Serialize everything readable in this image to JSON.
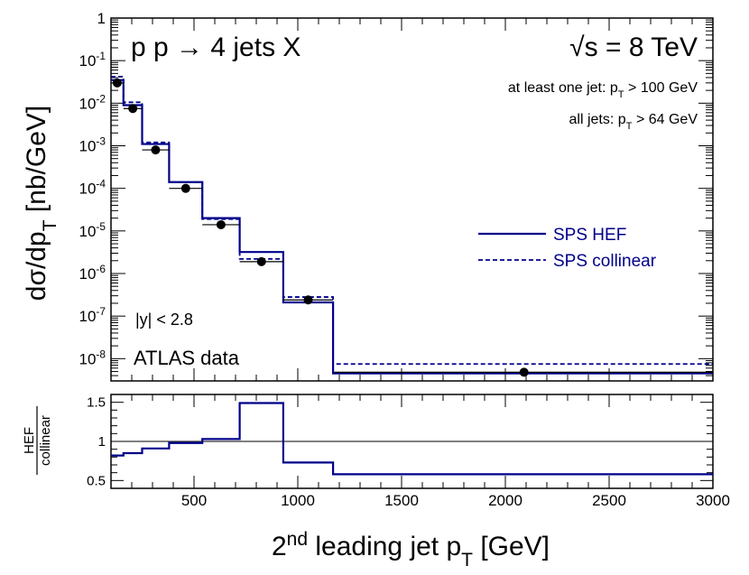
{
  "chart_data": {
    "type": "step-histogram",
    "title": "p p → 4 jets X",
    "energy": "√s = 8 TeV",
    "cuts": [
      "at least one jet: p_T > 100 GeV",
      "all jets: p_T > 64 GeV"
    ],
    "rapidity_cut": "|y| < 2.8",
    "data_label": "ATLAS data",
    "xlabel": "2nd leading jet p_T  [GeV]",
    "xlim": [
      100,
      3000
    ],
    "xticks": [
      500,
      1000,
      1500,
      2000,
      2500,
      3000
    ],
    "top": {
      "ylabel": "dσ/dp_T  [nb/GeV]",
      "yscale": "log",
      "ylim": [
        3e-09,
        1
      ],
      "bin_edges": [
        100,
        160,
        250,
        380,
        540,
        720,
        930,
        1170,
        3000
      ],
      "series": [
        {
          "name": "SPS HEF",
          "style": "solid",
          "color": "#00008b",
          "values": [
            0.035,
            0.009,
            0.0011,
            0.00014,
            2e-05,
            3.2e-06,
            2.1e-07,
            4.5e-09
          ]
        },
        {
          "name": "SPS collinear",
          "style": "dashed",
          "color": "#00008b",
          "values": [
            0.042,
            0.0105,
            0.0012,
            0.00014,
            1.9e-05,
            2.2e-06,
            2.8e-07,
            7.5e-09
          ]
        }
      ],
      "data_points": {
        "name": "ATLAS data",
        "x": [
          130,
          205,
          315,
          460,
          630,
          825,
          1050,
          2090
        ],
        "y": [
          0.03,
          0.0075,
          0.0008,
          0.0001,
          1.4e-05,
          1.9e-06,
          2.4e-07,
          4.8e-09
        ],
        "x_err": [
          30,
          45,
          65,
          80,
          90,
          105,
          120,
          915
        ]
      },
      "yticks": [
        {
          "v": 1,
          "base": "1",
          "exp": ""
        },
        {
          "v": 0.1,
          "base": "10",
          "exp": "-1"
        },
        {
          "v": 0.01,
          "base": "10",
          "exp": "-2"
        },
        {
          "v": 0.001,
          "base": "10",
          "exp": "-3"
        },
        {
          "v": 0.0001,
          "base": "10",
          "exp": "-4"
        },
        {
          "v": 1e-05,
          "base": "10",
          "exp": "-5"
        },
        {
          "v": 1e-06,
          "base": "10",
          "exp": "-6"
        },
        {
          "v": 1e-07,
          "base": "10",
          "exp": "-7"
        },
        {
          "v": 1e-08,
          "base": "10",
          "exp": "-8"
        }
      ]
    },
    "ratio": {
      "ylabel_num": "HEF",
      "ylabel_den": "collinear",
      "ylim": [
        0.4,
        1.6
      ],
      "yticks": [
        0.5,
        1,
        1.5
      ],
      "ytick_labels": [
        "0.5",
        "1",
        "1.5"
      ],
      "reference": 1,
      "values": [
        0.82,
        0.85,
        0.91,
        0.98,
        1.03,
        1.49,
        0.73,
        0.58
      ]
    }
  }
}
